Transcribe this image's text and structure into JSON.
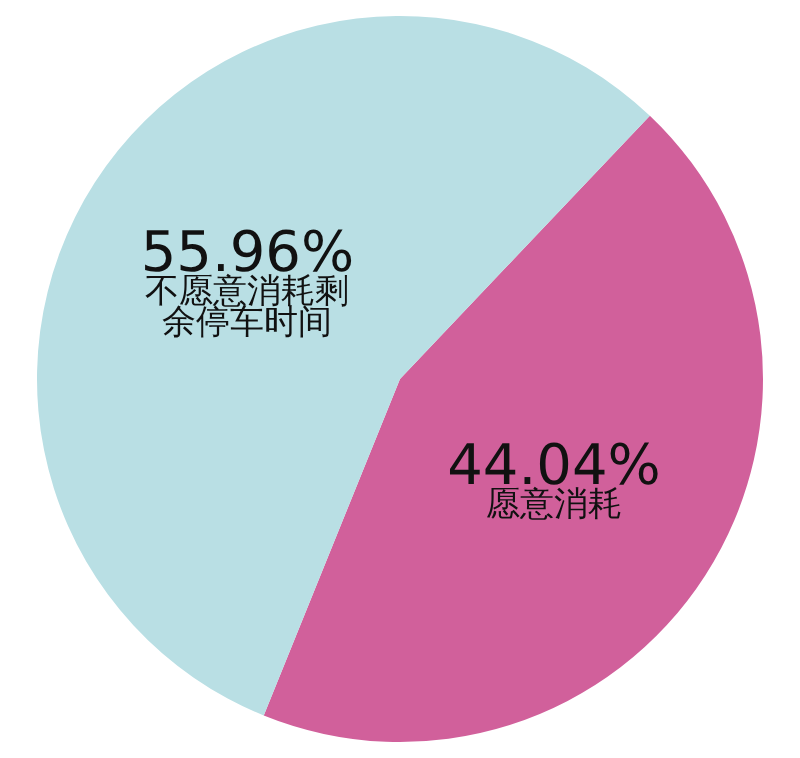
{
  "chart_data": {
    "type": "pie",
    "categories": [
      "愿意消耗",
      "不愿意消耗剩余停车时间"
    ],
    "values": [
      44.04,
      55.96
    ],
    "value_labels": [
      "44.04%",
      "55.96%"
    ],
    "colors": [
      "#d1609b",
      "#b9dfe4"
    ],
    "legend": false
  }
}
